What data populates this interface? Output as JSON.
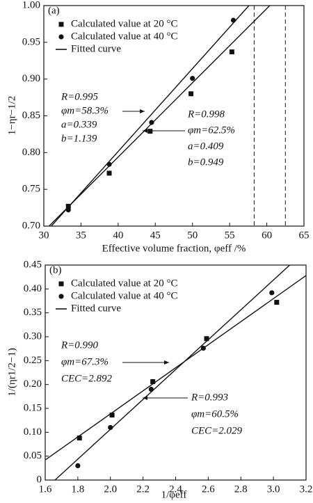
{
  "chart_data": [
    {
      "type": "scatter",
      "panel_label": "(a)",
      "x_label": "Effective volume fraction, φeff /%",
      "y_label": "1−ηr−1/2",
      "xlim": [
        30,
        65
      ],
      "xticks": [
        30,
        35,
        40,
        45,
        50,
        55,
        60,
        65
      ],
      "ylim": [
        0.7,
        1.0
      ],
      "yticks": [
        {
          "value": 0.7,
          "label": "0.70"
        },
        0.75,
        {
          "value": 0.8,
          "label": "0.80"
        },
        0.85,
        {
          "value": 0.9,
          "label": "0.90"
        },
        0.95,
        {
          "value": 1.0,
          "label": "1.00"
        }
      ],
      "top_tick_color": "#3a8a3a",
      "series": [
        {
          "name": "Calculated value at 20 °C",
          "marker": "square",
          "color": "#111",
          "x": [
            33.3,
            38.8,
            44.3,
            49.8,
            55.3
          ],
          "values": [
            0.727,
            0.772,
            0.829,
            0.88,
            0.937
          ]
        },
        {
          "name": "Calculated value at 40 °C",
          "marker": "circle",
          "color": "#111",
          "x": [
            33.3,
            38.8,
            44.5,
            50.0,
            55.5
          ],
          "values": [
            0.722,
            0.784,
            0.841,
            0.901,
            0.98
          ]
        }
      ],
      "fitted": {
        "name": "Fitted curve",
        "lines": [
          {
            "x": [
              31.0,
              57.6
            ],
            "values": [
              0.7,
              1.0
            ]
          },
          {
            "x": [
              30.7,
              60.4
            ],
            "values": [
              0.7,
              1.0
            ]
          }
        ]
      },
      "vlines": [
        58.3,
        62.5
      ],
      "annotations": [
        {
          "lines": [
            "R=0.995",
            "φm=58.3%",
            "a=0.339",
            "b=1.139"
          ]
        },
        {
          "lines": [
            "R=0.998",
            "φm=62.5%",
            "a=0.409",
            "b=0.949"
          ]
        }
      ]
    },
    {
      "type": "scatter",
      "panel_label": "(b)",
      "x_label": "1/φeff",
      "y_label": "1/(ηr1/2−1)",
      "xlim": [
        1.6,
        3.2
      ],
      "xticks": [
        1.6,
        1.8,
        {
          "value": 2.0,
          "label": "2.0"
        },
        2.2,
        2.4,
        2.6,
        2.8,
        {
          "value": 3.0,
          "label": "3.0"
        },
        3.2
      ],
      "ylim": [
        0,
        0.45
      ],
      "yticks": [
        0,
        0.05,
        {
          "value": 0.1,
          "label": "0.10"
        },
        0.15,
        {
          "value": 0.2,
          "label": "0.20"
        },
        0.25,
        {
          "value": 0.3,
          "label": "0.30"
        },
        0.35,
        {
          "value": 0.4,
          "label": "0.40"
        },
        0.45
      ],
      "series": [
        {
          "name": "Calculated value at 20 °C",
          "marker": "square",
          "color": "#111",
          "x": [
            1.81,
            2.01,
            2.26,
            2.59,
            3.02
          ],
          "values": [
            0.088,
            0.136,
            0.206,
            0.296,
            0.372
          ]
        },
        {
          "name": "Calculated value at 40 °C",
          "marker": "circle",
          "color": "#111",
          "x": [
            1.8,
            2.0,
            2.25,
            2.57,
            2.99
          ],
          "values": [
            0.03,
            0.11,
            0.19,
            0.276,
            0.392
          ]
        }
      ],
      "fitted": {
        "name": "Fitted curve",
        "lines": [
          {
            "x": [
              1.6,
              3.2
            ],
            "values": [
              0.042,
              0.428
            ]
          },
          {
            "x": [
              1.66,
              3.1
            ],
            "values": [
              0.0,
              0.45
            ]
          }
        ]
      },
      "annotations": [
        {
          "lines": [
            "R=0.990",
            "φm=67.3%",
            "CEC=2.892"
          ]
        },
        {
          "lines": [
            "R=0.993",
            "φm=60.5%",
            "CEC=2.029"
          ]
        }
      ]
    }
  ]
}
